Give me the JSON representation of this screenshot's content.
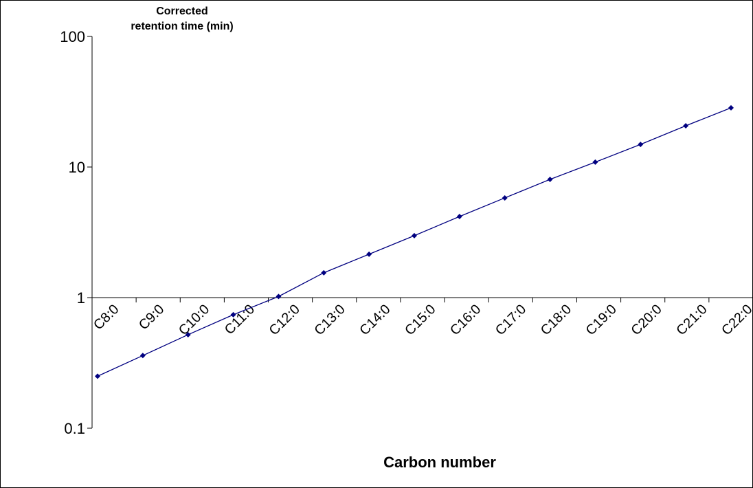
{
  "chart_data": {
    "type": "line",
    "title": null,
    "x_label": "Carbon number",
    "y_label": [
      "Corrected",
      "retention time (min)"
    ],
    "categories": [
      "C8:0",
      "C9:0",
      "C10:0",
      "C11:0",
      "C12:0",
      "C13:0",
      "C14:0",
      "C15:0",
      "C16:0",
      "C17:0",
      "C18:0",
      "C19:0",
      "C20:0",
      "C21:0",
      "C22:0"
    ],
    "series": [
      {
        "name": null,
        "color": "#000080",
        "values": [
          0.25,
          0.36,
          0.52,
          0.74,
          1.02,
          1.55,
          2.15,
          2.98,
          4.18,
          5.8,
          8.04,
          10.9,
          14.9,
          20.7,
          28.4
        ]
      }
    ],
    "ylim": [
      0.1,
      100
    ],
    "yticks": [
      0.1,
      1,
      10,
      100
    ],
    "log_y": true,
    "x_axis_crosses": 1,
    "grid": false
  }
}
